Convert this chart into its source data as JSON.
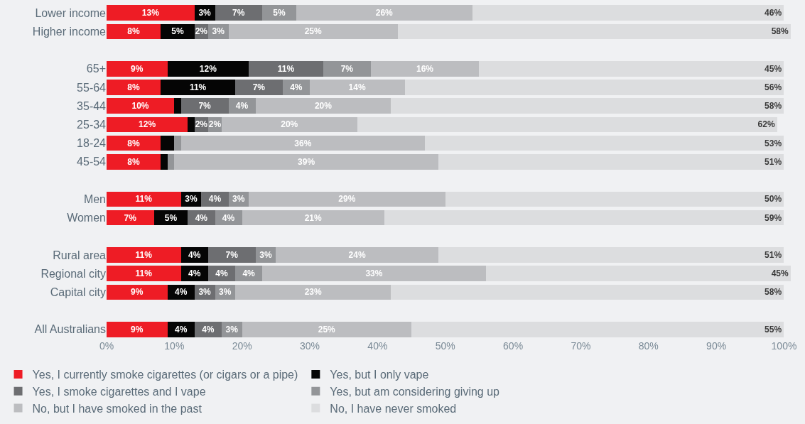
{
  "chart_data": {
    "type": "bar",
    "orientation": "horizontal",
    "stacked": true,
    "categories": [
      "Lower income",
      "Higher income",
      null,
      "65+",
      "55-64",
      "35-44",
      "25-34",
      "18-24",
      "45-54",
      null,
      "Men",
      "Women",
      null,
      "Rural area",
      "Regional city",
      "Capital city",
      null,
      "All Australians"
    ],
    "series": [
      {
        "name": "Yes, I currently smoke cigarettes (or cigars or a pipe)",
        "color": "#ee1c25",
        "values": [
          13,
          8,
          null,
          9,
          8,
          10,
          12,
          8,
          8,
          null,
          11,
          7,
          null,
          11,
          11,
          9,
          null,
          9
        ],
        "value_labels": [
          "13%",
          "8%",
          null,
          "9%",
          "8%",
          "10%",
          "12%",
          "8%",
          "8%",
          null,
          "11%",
          "7%",
          null,
          "11%",
          "11%",
          "9%",
          null,
          "9%"
        ]
      },
      {
        "name": "Yes, but I only vape",
        "color": "#050505",
        "values": [
          3,
          5,
          null,
          12,
          11,
          1,
          1,
          2,
          1,
          null,
          3,
          5,
          null,
          4,
          4,
          4,
          null,
          4
        ],
        "value_labels": [
          "3%",
          "5%",
          null,
          "12%",
          "11%",
          null,
          null,
          null,
          null,
          null,
          "3%",
          "5%",
          null,
          "4%",
          "4%",
          "4%",
          null,
          "4%"
        ]
      },
      {
        "name": "Yes, I smoke cigarettes and I vape",
        "color": "#6d6e71",
        "values": [
          7,
          2,
          null,
          11,
          7,
          7,
          2,
          0,
          0,
          null,
          4,
          4,
          null,
          7,
          4,
          3,
          null,
          4
        ],
        "value_labels": [
          "7%",
          "2%",
          null,
          "11%",
          "7%",
          "7%",
          "2%",
          null,
          null,
          null,
          "4%",
          "4%",
          null,
          "7%",
          "4%",
          "3%",
          null,
          "4%"
        ]
      },
      {
        "name": "Yes, but am considering giving up",
        "color": "#939598",
        "values": [
          5,
          3,
          null,
          7,
          4,
          4,
          2,
          1,
          1,
          null,
          3,
          4,
          null,
          3,
          4,
          3,
          null,
          3
        ],
        "value_labels": [
          "5%",
          "3%",
          null,
          "7%",
          "4%",
          "4%",
          "2%",
          null,
          null,
          null,
          "3%",
          "4%",
          null,
          "3%",
          "4%",
          "3%",
          null,
          "3%"
        ]
      },
      {
        "name": "No, but I have smoked in the past",
        "color": "#bcbdc0",
        "values": [
          26,
          25,
          null,
          16,
          14,
          20,
          20,
          36,
          39,
          null,
          29,
          21,
          null,
          24,
          33,
          23,
          null,
          25
        ],
        "value_labels": [
          "26%",
          "25%",
          null,
          "16%",
          "14%",
          "20%",
          "20%",
          "36%",
          "39%",
          null,
          "29%",
          "21%",
          null,
          "24%",
          "33%",
          "23%",
          null,
          "25%"
        ]
      },
      {
        "name": "No, I have never smoked",
        "color": "#dcdddf",
        "values": [
          46,
          58,
          null,
          45,
          56,
          58,
          62,
          53,
          51,
          null,
          50,
          59,
          null,
          51,
          45,
          58,
          null,
          55
        ],
        "value_labels": [
          "46%",
          "58%",
          null,
          "45%",
          "56%",
          "58%",
          "62%",
          "53%",
          "51%",
          null,
          "50%",
          "59%",
          null,
          "51%",
          "45%",
          "58%",
          null,
          "55%"
        ]
      }
    ],
    "xlim": [
      0,
      101
    ],
    "xticks": [
      {
        "value": 0,
        "label": "0%"
      },
      {
        "value": 10,
        "label": "10%"
      },
      {
        "value": 20,
        "label": "20%"
      },
      {
        "value": 30,
        "label": "30%"
      },
      {
        "value": 40,
        "label": "40%"
      },
      {
        "value": 50,
        "label": "50%"
      },
      {
        "value": 60,
        "label": "60%"
      },
      {
        "value": 70,
        "label": "70%"
      },
      {
        "value": 80,
        "label": "80%"
      },
      {
        "value": 90,
        "label": "90%"
      },
      {
        "value": 100,
        "label": "100%"
      }
    ],
    "grid": false,
    "legend": "bottom"
  }
}
